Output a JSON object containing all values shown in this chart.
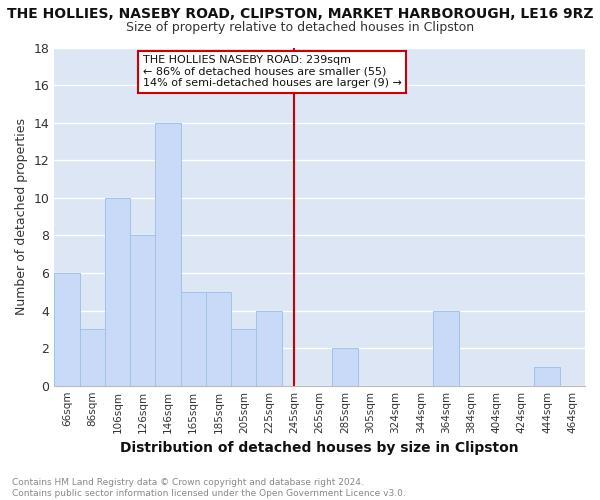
{
  "title1": "THE HOLLIES, NASEBY ROAD, CLIPSTON, MARKET HARBOROUGH, LE16 9RZ",
  "title2": "Size of property relative to detached houses in Clipston",
  "xlabel": "Distribution of detached houses by size in Clipston",
  "ylabel": "Number of detached properties",
  "categories": [
    "66sqm",
    "86sqm",
    "106sqm",
    "126sqm",
    "146sqm",
    "165sqm",
    "185sqm",
    "205sqm",
    "225sqm",
    "245sqm",
    "265sqm",
    "285sqm",
    "305sqm",
    "324sqm",
    "344sqm",
    "364sqm",
    "384sqm",
    "404sqm",
    "424sqm",
    "444sqm",
    "464sqm"
  ],
  "values": [
    6,
    3,
    10,
    8,
    14,
    5,
    5,
    3,
    4,
    0,
    0,
    2,
    0,
    0,
    0,
    4,
    0,
    0,
    0,
    1,
    0
  ],
  "bar_color": "#c9daf8",
  "bar_edge_color": "#9fc4e7",
  "vline_x_index": 9,
  "vline_color": "#cc0000",
  "annotation_box_color": "#ffffff",
  "annotation_edge_color": "#cc0000",
  "annotation_text_line1": "THE HOLLIES NASEBY ROAD: 239sqm",
  "annotation_text_line2": "← 86% of detached houses are smaller (55)",
  "annotation_text_line3": "14% of semi-detached houses are larger (9) →",
  "ylim": [
    0,
    18
  ],
  "yticks": [
    0,
    2,
    4,
    6,
    8,
    10,
    12,
    14,
    16,
    18
  ],
  "footer_line1": "Contains HM Land Registry data © Crown copyright and database right 2024.",
  "footer_line2": "Contains public sector information licensed under the Open Government Licence v3.0.",
  "plot_bg_color": "#dce6f5"
}
